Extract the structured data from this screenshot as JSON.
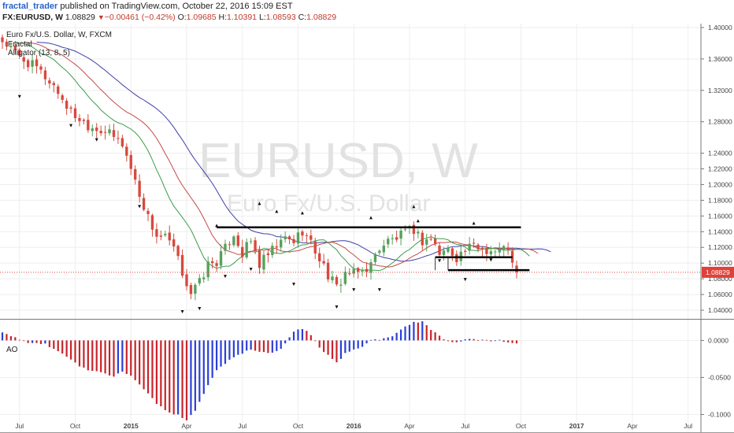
{
  "header": {
    "author": "fractal_trader",
    "published_text": " published on TradingView.com, October 22, 2016 15:09 EST",
    "symbol": "FX:EURUSD, W",
    "last": "1.08829",
    "change": "−0.00461 (−0.42%)",
    "o_label": "O:",
    "o": "1.09685",
    "h_label": "H:",
    "h": "1.10391",
    "l_label": "L:",
    "l": "1.08593",
    "c_label": "C:",
    "c": "1.08829"
  },
  "legend": {
    "title": "Euro Fx/U.S. Dollar, W, FXCM",
    "ind1": "Fractal",
    "ind2": "Alligator (13, 8, 5)"
  },
  "watermark": {
    "symbol": "EURUSD, W",
    "name": "Euro Fx/U.S. Dollar"
  },
  "ao_label": "AO",
  "colors": {
    "up": "#58a05c",
    "down": "#d64a3f",
    "jaw": "#3f3fa8",
    "teeth": "#c44a4a",
    "lips": "#3a9e4a",
    "ao_up": "#2b3fd6",
    "ao_down": "#c8232a",
    "level": "#000000",
    "price_line": "#e0403a"
  },
  "chart_data": [
    {
      "type": "candlestick",
      "title": "Euro Fx/U.S. Dollar, W, FXCM",
      "ylim": [
        1.03,
        1.405
      ],
      "y_ticks": [
        "1.40000",
        "1.36000",
        "1.32000",
        "1.28000",
        "1.24000",
        "1.22000",
        "1.20000",
        "1.18000",
        "1.16000",
        "1.14000",
        "1.12000",
        "1.10000",
        "1.08000",
        "1.06000",
        "1.04000"
      ],
      "y_tick_values": [
        1.4,
        1.36,
        1.32,
        1.28,
        1.24,
        1.22,
        1.2,
        1.18,
        1.16,
        1.14,
        1.12,
        1.1,
        1.08,
        1.06,
        1.04
      ],
      "x_ticks": [
        "Jul",
        "Oct",
        "2015",
        "Apr",
        "Jul",
        "Oct",
        "2016",
        "Apr",
        "Jul",
        "Oct",
        "2017",
        "Apr",
        "Jul"
      ],
      "x_tick_weeks": [
        4,
        17,
        30,
        43,
        56,
        69,
        82,
        95,
        108,
        121,
        134,
        147,
        160
      ],
      "last_price": "1.08829",
      "last_price_value": 1.08829,
      "close_path": [
        [
          0,
          1.383
        ],
        [
          4,
          1.362
        ],
        [
          8,
          1.348
        ],
        [
          12,
          1.326
        ],
        [
          16,
          1.292
        ],
        [
          20,
          1.276
        ],
        [
          24,
          1.268
        ],
        [
          28,
          1.252
        ],
        [
          30,
          1.221
        ],
        [
          32,
          1.188
        ],
        [
          34,
          1.158
        ],
        [
          36,
          1.135
        ],
        [
          38,
          1.132
        ],
        [
          40,
          1.118
        ],
        [
          42,
          1.088
        ],
        [
          44,
          1.062
        ],
        [
          46,
          1.075
        ],
        [
          48,
          1.098
        ],
        [
          50,
          1.102
        ],
        [
          52,
          1.118
        ],
        [
          54,
          1.138
        ],
        [
          56,
          1.112
        ],
        [
          58,
          1.128
        ],
        [
          60,
          1.098
        ],
        [
          62,
          1.11
        ],
        [
          64,
          1.121
        ],
        [
          66,
          1.131
        ],
        [
          68,
          1.128
        ],
        [
          70,
          1.142
        ],
        [
          72,
          1.125
        ],
        [
          74,
          1.106
        ],
        [
          76,
          1.085
        ],
        [
          78,
          1.068
        ],
        [
          80,
          1.088
        ],
        [
          82,
          1.086
        ],
        [
          84,
          1.09
        ],
        [
          86,
          1.098
        ],
        [
          88,
          1.12
        ],
        [
          90,
          1.128
        ],
        [
          92,
          1.132
        ],
        [
          94,
          1.138
        ],
        [
          96,
          1.143
        ],
        [
          98,
          1.128
        ],
        [
          100,
          1.132
        ],
        [
          102,
          1.112
        ],
        [
          104,
          1.118
        ],
        [
          106,
          1.108
        ],
        [
          108,
          1.116
        ],
        [
          110,
          1.121
        ],
        [
          112,
          1.119
        ],
        [
          114,
          1.116
        ],
        [
          116,
          1.115
        ],
        [
          118,
          1.121
        ],
        [
          119,
          1.097
        ],
        [
          120,
          1.088
        ]
      ],
      "fractals_up": [
        [
          50,
          1.148
        ],
        [
          60,
          1.176
        ],
        [
          64,
          1.166
        ],
        [
          70,
          1.164
        ],
        [
          86,
          1.158
        ],
        [
          96,
          1.172
        ],
        [
          97,
          1.154
        ],
        [
          110,
          1.151
        ]
      ],
      "fractals_down": [
        [
          4,
          1.312
        ],
        [
          16,
          1.275
        ],
        [
          22,
          1.257
        ],
        [
          32,
          1.172
        ],
        [
          42,
          1.038
        ],
        [
          46,
          1.042
        ],
        [
          52,
          1.083
        ],
        [
          58,
          1.092
        ],
        [
          68,
          1.073
        ],
        [
          78,
          1.044
        ],
        [
          82,
          1.066
        ],
        [
          88,
          1.066
        ],
        [
          102,
          1.103
        ],
        [
          108,
          1.079
        ],
        [
          114,
          1.104
        ]
      ],
      "levels": [
        {
          "from": 50,
          "to": 121,
          "value": 1.1455
        },
        {
          "from": 101,
          "to": 119,
          "value": 1.1075
        },
        {
          "from": 104,
          "to": 123,
          "value": 1.091
        }
      ],
      "range_box": {
        "from": 101,
        "to": 104,
        "top": 1.1075,
        "bottom": 1.091
      }
    },
    {
      "type": "histogram",
      "title": "AO",
      "ylim": [
        -0.125,
        0.027
      ],
      "y_ticks": [
        "0.0000",
        "-0.0500",
        "-0.1000"
      ],
      "y_tick_values": [
        0.0,
        -0.05,
        -0.1
      ],
      "ao_path": [
        [
          0,
          0.01
        ],
        [
          3,
          0.004
        ],
        [
          6,
          -0.004
        ],
        [
          10,
          -0.005
        ],
        [
          14,
          -0.018
        ],
        [
          18,
          -0.035
        ],
        [
          20,
          -0.04
        ],
        [
          24,
          -0.045
        ],
        [
          26,
          -0.048
        ],
        [
          28,
          -0.043
        ],
        [
          30,
          -0.048
        ],
        [
          33,
          -0.065
        ],
        [
          36,
          -0.085
        ],
        [
          39,
          -0.098
        ],
        [
          41,
          -0.1
        ],
        [
          43,
          -0.108
        ],
        [
          45,
          -0.095
        ],
        [
          48,
          -0.06
        ],
        [
          50,
          -0.04
        ],
        [
          54,
          -0.022
        ],
        [
          58,
          -0.012
        ],
        [
          62,
          -0.018
        ],
        [
          65,
          -0.012
        ],
        [
          68,
          0.012
        ],
        [
          70,
          0.016
        ],
        [
          72,
          0.008
        ],
        [
          74,
          -0.01
        ],
        [
          76,
          -0.02
        ],
        [
          78,
          -0.03
        ],
        [
          80,
          -0.018
        ],
        [
          82,
          -0.012
        ],
        [
          84,
          -0.008
        ],
        [
          86,
          0.0
        ],
        [
          89,
          0.002
        ],
        [
          91,
          0.006
        ],
        [
          94,
          0.018
        ],
        [
          96,
          0.025
        ],
        [
          98,
          0.025
        ],
        [
          100,
          0.015
        ],
        [
          102,
          0.006
        ],
        [
          104,
          -0.002
        ],
        [
          106,
          -0.003
        ],
        [
          108,
          0.001
        ],
        [
          110,
          0.002
        ],
        [
          112,
          0.001
        ],
        [
          114,
          -0.001
        ],
        [
          116,
          0.0
        ],
        [
          118,
          -0.002
        ],
        [
          120,
          -0.005
        ]
      ]
    }
  ]
}
